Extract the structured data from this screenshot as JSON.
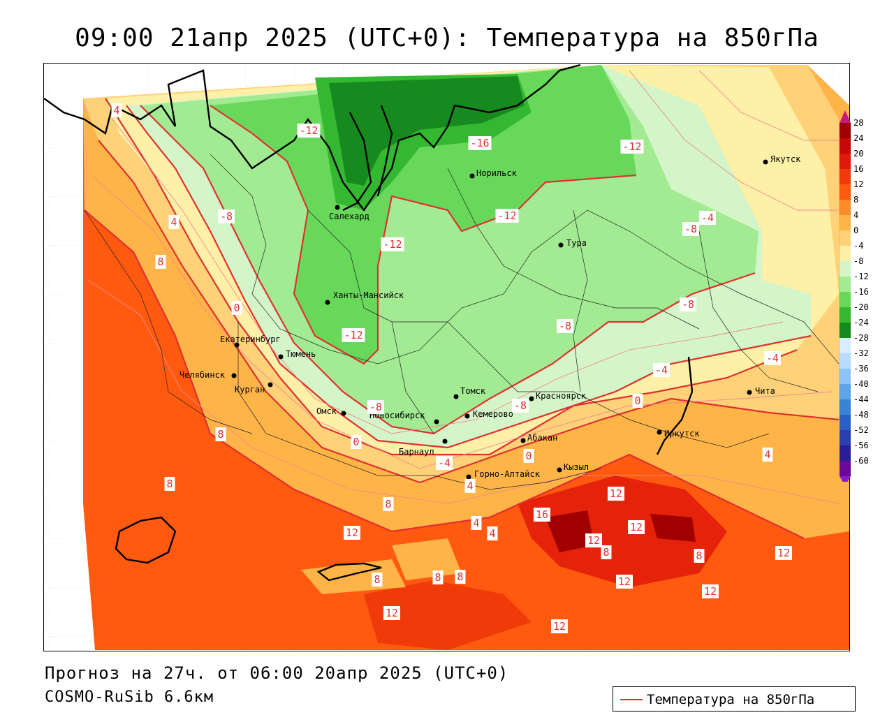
{
  "title": "09:00 21апр 2025 (UTC+0): Температура на 850гПа",
  "footer": {
    "forecast": "Прогноз на 27ч. от 06:00 20апр 2025 (UTC+0)",
    "model": "COSMO-RuSib 6.6км"
  },
  "legend": {
    "label": "Температура на 850гПа",
    "line_color": "#e03030"
  },
  "colorbar": {
    "ticks": [
      "28",
      "24",
      "20",
      "16",
      "12",
      "8",
      "4",
      "0",
      "-4",
      "-8",
      "-12",
      "-16",
      "-20",
      "-24",
      "-28",
      "-32",
      "-36",
      "-40",
      "-44",
      "-48",
      "-52",
      "-56",
      "-60"
    ],
    "colors": [
      "#a00000",
      "#c80808",
      "#e01a0a",
      "#f03a0a",
      "#ff5a0f",
      "#ff8a28",
      "#ffb448",
      "#ffd27a",
      "#fff0a8",
      "#d4f5c8",
      "#a2eb92",
      "#68d85a",
      "#34b832",
      "#168a1e",
      "#d8eeff",
      "#b8dcff",
      "#8cc4f8",
      "#5ea4ea",
      "#3a82d8",
      "#2a5ec8",
      "#2a3eb0",
      "#2a1e98",
      "#6a0a9a"
    ]
  },
  "cities": [
    {
      "name": "Якутск"
    },
    {
      "name": "Норильск"
    },
    {
      "name": "Салехард"
    },
    {
      "name": "Тура"
    },
    {
      "name": "Ханты-Мансийск"
    },
    {
      "name": "Екатеринбург"
    },
    {
      "name": "Тюмень"
    },
    {
      "name": "Челябинск"
    },
    {
      "name": "Курган"
    },
    {
      "name": "Омск"
    },
    {
      "name": "Новосибирск"
    },
    {
      "name": "Томск"
    },
    {
      "name": "Кемерово"
    },
    {
      "name": "Красноярск"
    },
    {
      "name": "Барнаул"
    },
    {
      "name": "Абакан"
    },
    {
      "name": "Горно-Алтайск"
    },
    {
      "name": "Кызыл"
    },
    {
      "name": "Иркутск"
    },
    {
      "name": "Чита"
    }
  ],
  "contour_labels": [
    "4",
    "-12",
    "-16",
    "-12",
    "-8",
    "-12",
    "-12",
    "-4",
    "-8",
    "4",
    "8",
    "0",
    "-12",
    "-8",
    "-8",
    "-4",
    "-4",
    "0",
    "-8",
    "-8",
    "0",
    "8",
    "-4",
    "0",
    "4",
    "4",
    "8",
    "8",
    "12",
    "4",
    "4",
    "16",
    "12",
    "12",
    "8",
    "12",
    "8",
    "12",
    "8",
    "8",
    "8",
    "12",
    "12",
    "12",
    "12"
  ]
}
